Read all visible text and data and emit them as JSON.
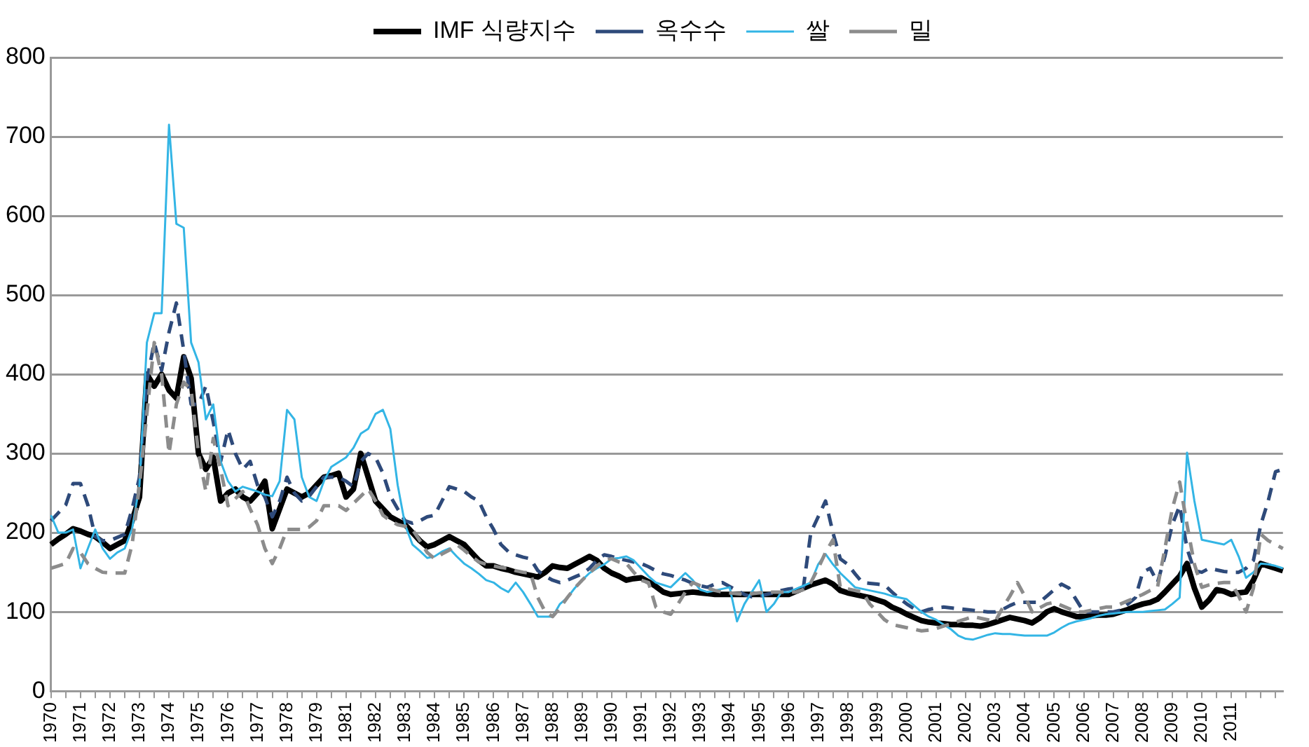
{
  "chart_data": {
    "type": "line",
    "legend": "top",
    "grid": "y",
    "marker": "none",
    "categories": [
      "1970",
      null,
      null,
      null,
      "1971",
      null,
      null,
      null,
      "1972",
      null,
      null,
      null,
      "1973",
      null,
      null,
      null,
      "1974",
      null,
      null,
      null,
      "1975",
      null,
      null,
      null,
      "1976",
      null,
      null,
      null,
      "1977",
      null,
      null,
      null,
      "1978",
      null,
      null,
      null,
      "1979",
      null,
      null,
      null,
      "1981",
      null,
      null,
      null,
      "1982",
      null,
      null,
      null,
      "1983",
      null,
      null,
      null,
      "1984",
      null,
      null,
      null,
      "1985",
      null,
      null,
      null,
      "1986",
      null,
      null,
      null,
      "1987",
      null,
      null,
      null,
      "1988",
      null,
      null,
      null,
      "1989",
      null,
      null,
      null,
      "1990",
      null,
      null,
      null,
      "1991",
      null,
      null,
      null,
      "1992",
      null,
      null,
      null,
      "1993",
      null,
      null,
      null,
      "1994",
      null,
      null,
      null,
      "1995",
      null,
      null,
      null,
      "1996",
      null,
      null,
      null,
      "1997",
      null,
      null,
      null,
      "1998",
      null,
      null,
      null,
      "1999",
      null,
      null,
      null,
      "2000",
      null,
      null,
      null,
      "2001",
      null,
      null,
      null,
      "2002",
      null,
      null,
      null,
      "2003",
      null,
      null,
      null,
      "2004",
      null,
      null,
      null,
      "2005",
      null,
      null,
      null,
      "2006",
      null,
      null,
      null,
      "2007",
      null,
      null,
      null,
      "2008",
      null,
      null,
      null,
      "2009",
      null,
      null,
      null,
      "2010",
      null,
      null,
      null,
      "2011",
      null,
      null,
      null,
      null,
      null,
      null,
      null
    ],
    "ylim": [
      0,
      800
    ],
    "yticks": [
      0,
      100,
      200,
      300,
      400,
      500,
      600,
      700,
      800
    ],
    "series": [
      {
        "name": "IMF 식량지수",
        "color": "#000000",
        "line_style": "solid",
        "values": [
          185,
          192,
          198,
          205,
          202,
          198,
          195,
          188,
          180,
          185,
          190,
          215,
          245,
          400,
          385,
          400,
          380,
          370,
          422,
          395,
          300,
          280,
          295,
          240,
          250,
          255,
          245,
          240,
          250,
          265,
          205,
          230,
          255,
          250,
          245,
          250,
          260,
          270,
          272,
          275,
          245,
          255,
          300,
          270,
          240,
          230,
          220,
          215,
          210,
          200,
          190,
          182,
          185,
          190,
          195,
          190,
          185,
          175,
          165,
          158,
          158,
          155,
          153,
          150,
          148,
          146,
          144,
          150,
          158,
          156,
          155,
          160,
          165,
          170,
          165,
          155,
          149,
          145,
          140,
          142,
          143,
          138,
          132,
          125,
          122,
          123,
          124,
          125,
          124,
          123,
          122,
          122,
          122,
          122,
          122,
          122,
          122,
          122,
          122,
          122,
          122,
          126,
          130,
          134,
          137,
          140,
          135,
          127,
          124,
          122,
          120,
          118,
          115,
          112,
          106,
          102,
          97,
          93,
          89,
          87,
          86,
          85,
          84,
          84,
          83,
          83,
          82,
          84,
          87,
          90,
          93,
          91,
          89,
          86,
          92,
          100,
          104,
          100,
          97,
          94,
          94,
          95,
          96,
          96,
          97,
          100,
          103,
          107,
          110,
          112,
          116,
          125,
          135,
          145,
          161,
          130,
          106,
          115,
          128,
          126,
          122,
          124,
          125,
          140,
          161,
          158,
          155,
          152
        ]
      },
      {
        "name": "옥수수",
        "color": "#2e4a7a",
        "line_style": "dashed",
        "values": [
          215,
          225,
          235,
          262,
          262,
          235,
          195,
          190,
          190,
          194,
          198,
          230,
          270,
          392,
          440,
          405,
          453,
          490,
          430,
          362,
          362,
          385,
          340,
          290,
          330,
          300,
          280,
          290,
          260,
          245,
          220,
          240,
          270,
          250,
          240,
          246,
          258,
          270,
          270,
          270,
          265,
          258,
          290,
          300,
          295,
          275,
          246,
          230,
          215,
          212,
          215,
          220,
          222,
          240,
          258,
          255,
          252,
          245,
          240,
          220,
          204,
          185,
          176,
          172,
          169,
          167,
          152,
          145,
          140,
          137,
          140,
          144,
          148,
          155,
          165,
          172,
          170,
          167,
          165,
          163,
          161,
          157,
          152,
          148,
          146,
          143,
          140,
          136,
          133,
          131,
          135,
          137,
          132,
          127,
          122,
          119,
          120,
          122,
          124,
          127,
          129,
          130,
          131,
          200,
          220,
          240,
          200,
          167,
          160,
          148,
          137,
          136,
          135,
          134,
          125,
          117,
          110,
          104,
          100,
          103,
          105,
          106,
          105,
          104,
          103,
          102,
          101,
          100,
          100,
          103,
          108,
          112,
          112,
          112,
          112,
          120,
          128,
          135,
          130,
          115,
          100,
          100,
          100,
          100,
          100,
          102,
          110,
          118,
          150,
          155,
          137,
          170,
          210,
          234,
          180,
          152,
          150,
          155,
          153,
          151,
          150,
          150,
          155,
          165,
          210,
          240,
          277,
          280
        ]
      },
      {
        "name": "쌀",
        "color": "#33b5e5",
        "line_style": "solid",
        "values": [
          222,
          200,
          200,
          204,
          155,
          180,
          204,
          180,
          167,
          175,
          180,
          205,
          260,
          440,
          477,
          477,
          715,
          590,
          585,
          440,
          415,
          343,
          362,
          290,
          265,
          252,
          258,
          255,
          252,
          248,
          246,
          265,
          355,
          343,
          270,
          245,
          240,
          265,
          283,
          289,
          295,
          307,
          325,
          331,
          350,
          355,
          331,
          260,
          210,
          185,
          177,
          168,
          170,
          176,
          180,
          170,
          161,
          155,
          148,
          140,
          137,
          130,
          125,
          137,
          125,
          110,
          94,
          94,
          94,
          110,
          118,
          130,
          140,
          149,
          155,
          160,
          167,
          168,
          170,
          165,
          155,
          145,
          137,
          134,
          131,
          140,
          149,
          140,
          128,
          125,
          127,
          129,
          131,
          88,
          110,
          125,
          140,
          100,
          110,
          125,
          125,
          129,
          133,
          137,
          160,
          173,
          160,
          149,
          140,
          131,
          129,
          127,
          125,
          123,
          120,
          118,
          116,
          108,
          100,
          94,
          90,
          84,
          78,
          70,
          66,
          65,
          68,
          71,
          73,
          72,
          72,
          71,
          70,
          70,
          70,
          70,
          74,
          80,
          85,
          88,
          90,
          92,
          95,
          97,
          98,
          99,
          100,
          100,
          100,
          101,
          102,
          103,
          110,
          118,
          301,
          240,
          191,
          189,
          187,
          185,
          191,
          170,
          143,
          150,
          161,
          160,
          158,
          155
        ]
      },
      {
        "name": "밀",
        "color": "#8c8c8c",
        "line_style": "dashed",
        "values": [
          155,
          158,
          161,
          180,
          175,
          161,
          155,
          150,
          149,
          149,
          149,
          185,
          260,
          350,
          440,
          400,
          300,
          362,
          390,
          380,
          300,
          252,
          319,
          280,
          234,
          243,
          252,
          230,
          210,
          180,
          161,
          180,
          204,
          204,
          204,
          207,
          215,
          234,
          234,
          234,
          228,
          237,
          246,
          255,
          240,
          222,
          215,
          210,
          208,
          204,
          190,
          175,
          167,
          173,
          178,
          185,
          178,
          170,
          163,
          160,
          158,
          156,
          155,
          152,
          150,
          149,
          118,
          100,
          94,
          105,
          118,
          130,
          140,
          149,
          158,
          165,
          167,
          163,
          161,
          150,
          140,
          137,
          106,
          100,
          97,
          110,
          125,
          137,
          133,
          130,
          127,
          125,
          124,
          123,
          122,
          123,
          124,
          125,
          125,
          125,
          125,
          125,
          128,
          137,
          155,
          175,
          191,
          131,
          129,
          127,
          125,
          110,
          100,
          90,
          84,
          82,
          80,
          78,
          76,
          77,
          79,
          82,
          85,
          88,
          91,
          94,
          92,
          90,
          88,
          105,
          120,
          137,
          120,
          100,
          105,
          110,
          112,
          108,
          104,
          100,
          100,
          102,
          104,
          106,
          106,
          110,
          114,
          118,
          122,
          127,
          131,
          180,
          230,
          264,
          210,
          160,
          131,
          134,
          136,
          137,
          137,
          120,
          100,
          130,
          198,
          190,
          185,
          180
        ]
      }
    ]
  }
}
